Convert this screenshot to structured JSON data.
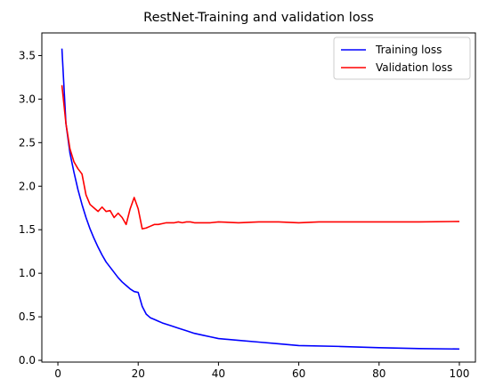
{
  "chart_data": {
    "type": "line",
    "title": "RestNet-Training and validation loss",
    "xlabel": "",
    "ylabel": "",
    "xlim": [
      -4,
      104
    ],
    "ylim": [
      -0.02,
      3.76
    ],
    "xticks": [
      0,
      20,
      40,
      60,
      80,
      100
    ],
    "yticks": [
      0.0,
      0.5,
      1.0,
      1.5,
      2.0,
      2.5,
      3.0,
      3.5
    ],
    "grid": false,
    "legend_position": "top-right",
    "series": [
      {
        "name": "Training loss",
        "color": "#0000ff",
        "x": [
          1,
          2,
          3,
          4,
          5,
          6,
          7,
          8,
          9,
          10,
          11,
          12,
          13,
          14,
          15,
          16,
          17,
          18,
          19,
          20,
          21,
          22,
          23,
          24,
          25,
          26,
          28,
          30,
          32,
          34,
          36,
          38,
          40,
          45,
          50,
          55,
          60,
          70,
          80,
          90,
          100
        ],
        "y": [
          3.58,
          2.72,
          2.38,
          2.16,
          1.96,
          1.79,
          1.64,
          1.51,
          1.4,
          1.3,
          1.21,
          1.13,
          1.07,
          1.01,
          0.95,
          0.9,
          0.86,
          0.82,
          0.79,
          0.78,
          0.62,
          0.53,
          0.49,
          0.47,
          0.45,
          0.43,
          0.4,
          0.37,
          0.34,
          0.31,
          0.29,
          0.27,
          0.25,
          0.23,
          0.21,
          0.19,
          0.17,
          0.16,
          0.145,
          0.135,
          0.13
        ]
      },
      {
        "name": "Validation loss",
        "color": "#ff0000",
        "x": [
          1,
          2,
          3,
          4,
          5,
          6,
          7,
          8,
          9,
          10,
          11,
          12,
          13,
          14,
          15,
          16,
          17,
          18,
          19,
          20,
          21,
          22,
          23,
          24,
          25,
          26,
          27,
          28,
          29,
          30,
          31,
          32,
          33,
          34,
          36,
          38,
          40,
          45,
          50,
          55,
          60,
          65,
          70,
          75,
          80,
          90,
          100
        ],
        "y": [
          3.16,
          2.72,
          2.43,
          2.28,
          2.2,
          2.14,
          1.9,
          1.79,
          1.75,
          1.71,
          1.76,
          1.71,
          1.72,
          1.64,
          1.69,
          1.64,
          1.56,
          1.74,
          1.87,
          1.74,
          1.51,
          1.52,
          1.54,
          1.56,
          1.56,
          1.57,
          1.58,
          1.58,
          1.58,
          1.59,
          1.58,
          1.59,
          1.59,
          1.58,
          1.58,
          1.58,
          1.59,
          1.58,
          1.59,
          1.59,
          1.58,
          1.59,
          1.59,
          1.59,
          1.59,
          1.59,
          1.595
        ]
      }
    ]
  }
}
